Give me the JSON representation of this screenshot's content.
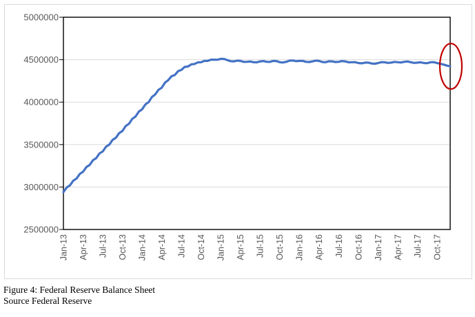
{
  "chart_data": {
    "type": "line",
    "title": "",
    "xlabel": "",
    "ylabel": "",
    "x_tick_labels": [
      "Jan-13",
      "Apr-13",
      "Jul-13",
      "Oct-13",
      "Jan-14",
      "Apr-14",
      "Jul-14",
      "Oct-14",
      "Jan-15",
      "Apr-15",
      "Jul-15",
      "Oct-15",
      "Jan-16",
      "Apr-16",
      "Jul-16",
      "Oct-16",
      "Jan-17",
      "Apr-17",
      "Jul-17",
      "Oct-17"
    ],
    "points_per_tick": 6,
    "y_ticks": [
      2500000,
      3000000,
      3500000,
      4000000,
      4500000,
      5000000
    ],
    "ylim": [
      2500000,
      5000000
    ],
    "grid": true,
    "legend_position": "none",
    "axis_color": "#000000",
    "gridline_color": "#d9d9d9",
    "tick_label_color": "#595959",
    "series": [
      {
        "name": "Federal Reserve Balance Sheet",
        "color": "#4472c4",
        "values": [
          2940000,
          2995000,
          3020000,
          3075000,
          3100000,
          3155000,
          3180000,
          3235000,
          3260000,
          3315000,
          3340000,
          3395000,
          3420000,
          3475000,
          3500000,
          3555000,
          3580000,
          3635000,
          3660000,
          3718000,
          3745000,
          3803000,
          3830000,
          3888000,
          3915000,
          3973000,
          4000000,
          4060000,
          4090000,
          4145000,
          4170000,
          4230000,
          4260000,
          4305000,
          4320000,
          4365000,
          4380000,
          4415000,
          4420000,
          4445000,
          4450000,
          4468000,
          4470000,
          4486000,
          4485000,
          4500000,
          4500000,
          4499000,
          4510000,
          4509000,
          4495000,
          4482000,
          4480000,
          4489000,
          4485000,
          4474000,
          4475000,
          4479000,
          4470000,
          4469000,
          4480000,
          4484000,
          4475000,
          4474000,
          4485000,
          4484000,
          4470000,
          4467000,
          4475000,
          4489000,
          4490000,
          4482000,
          4485000,
          4486000,
          4475000,
          4472000,
          4480000,
          4489000,
          4485000,
          4472000,
          4470000,
          4481000,
          4480000,
          4472000,
          4475000,
          4484000,
          4480000,
          4469000,
          4470000,
          4471000,
          4460000,
          4457000,
          4465000,
          4466000,
          4455000,
          4452000,
          4460000,
          4471000,
          4470000,
          4462000,
          4465000,
          4474000,
          4470000,
          4467000,
          4475000,
          4479000,
          4470000,
          4462000,
          4465000,
          4469000,
          4460000,
          4459000,
          4470000,
          4471000,
          4460000,
          4452000,
          4442000,
          4430000,
          4422000
        ]
      }
    ],
    "annotation": {
      "shape": "ellipse",
      "color": "#c00000",
      "highlights": "final data points at end of series"
    }
  },
  "caption": {
    "line1": "Figure 4: Federal Reserve Balance Sheet",
    "line2": "Source Federal Reserve"
  }
}
